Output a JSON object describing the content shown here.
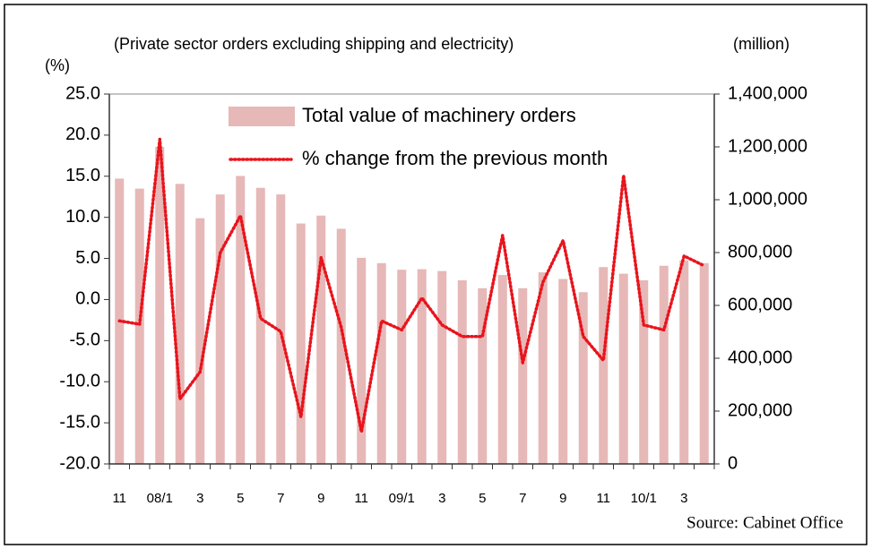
{
  "chart_data": {
    "type": "combo",
    "title": "(Private sector orders excluding shipping and electricity)",
    "ylabel": "(%)",
    "y2label": "(million)",
    "source": "Source: Cabinet Office",
    "categories": [
      "11",
      null,
      "08/1",
      null,
      "3",
      null,
      "5",
      null,
      "7",
      null,
      "9",
      null,
      "11",
      null,
      "09/1",
      null,
      "3",
      null,
      "5",
      null,
      "7",
      null,
      "9",
      null,
      "11",
      null,
      "10/1",
      null,
      "3",
      null
    ],
    "series": [
      {
        "name": "Total value of machinery orders",
        "type": "bar",
        "axis": "y2",
        "color": "#e6b8b7",
        "values": [
          1080000,
          1042000,
          1200000,
          1060000,
          930000,
          1020000,
          1090000,
          1045000,
          1020000,
          910000,
          940000,
          890000,
          780000,
          760000,
          735000,
          737000,
          730000,
          695000,
          665000,
          715000,
          665000,
          725000,
          700000,
          650000,
          745000,
          720000,
          695000,
          750000,
          770000,
          760000
        ]
      },
      {
        "name": "% change from the previous month",
        "type": "line",
        "color": "#e8141c",
        "values": [
          -2.6,
          -3.0,
          19.5,
          -12.1,
          -8.8,
          5.7,
          10.2,
          -2.3,
          -3.9,
          -14.3,
          5.1,
          -3.4,
          -16.1,
          -2.6,
          -3.7,
          0.2,
          -3.1,
          -4.5,
          -4.5,
          7.8,
          -7.7,
          2.1,
          7.2,
          -4.5,
          -7.4,
          15.1,
          -3.1,
          -3.7,
          5.3,
          4.1
        ]
      }
    ],
    "ylim": [
      -20,
      25
    ],
    "yticks": [
      {
        "value": -20,
        "label": "-20.0"
      },
      {
        "value": -15,
        "label": "-15.0"
      },
      {
        "value": -10,
        "label": "-10.0"
      },
      {
        "value": -5,
        "label": "-5.0"
      },
      {
        "value": 0,
        "label": "0.0"
      },
      {
        "value": 5,
        "label": "5.0"
      },
      {
        "value": 10,
        "label": "10.0"
      },
      {
        "value": 15,
        "label": "15.0"
      },
      {
        "value": 20,
        "label": "20.0"
      },
      {
        "value": 25,
        "label": "25.0"
      }
    ],
    "y2lim": [
      0,
      1400000
    ],
    "y2ticks": [
      0,
      {
        "value": 200000,
        "label": "200,000"
      },
      {
        "value": 400000,
        "label": "400,000"
      },
      {
        "value": 600000,
        "label": "600,000"
      },
      {
        "value": 800000,
        "label": "800,000"
      },
      {
        "value": 1000000,
        "label": "1,000,000"
      },
      {
        "value": 1200000,
        "label": "1,200,000"
      },
      {
        "value": 1400000,
        "label": "1,400,000"
      }
    ]
  }
}
